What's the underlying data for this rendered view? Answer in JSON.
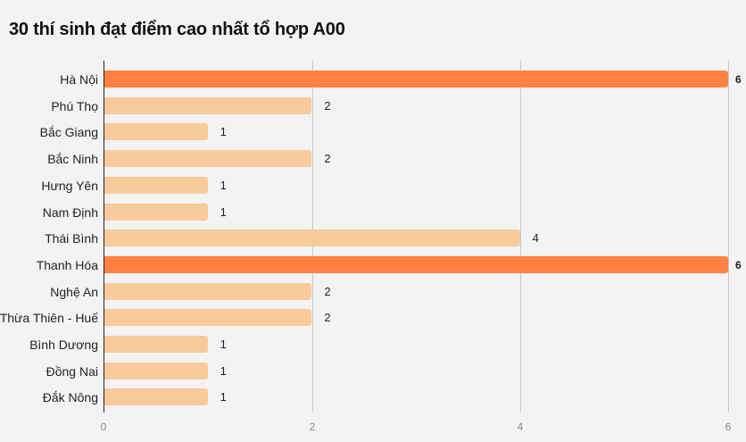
{
  "title": "30 thí sinh đạt điểm cao nhất tổ hợp A00",
  "colors": {
    "highlight": "#ff8040",
    "normal": "#f9ca9b",
    "background": "#f3f3f3"
  },
  "axis": {
    "ticks": [
      "0",
      "2",
      "4",
      "6"
    ]
  },
  "chart_data": {
    "type": "bar",
    "orientation": "horizontal",
    "title": "30 thí sinh đạt điểm cao nhất tổ hợp A00",
    "xlabel": "",
    "ylabel": "",
    "xlim": [
      0,
      6
    ],
    "x_ticks": [
      0,
      2,
      4,
      6
    ],
    "grid": true,
    "categories": [
      "Hà Nội",
      "Phú Thọ",
      "Bắc Giang",
      "Bắc Ninh",
      "Hưng Yên",
      "Nam Định",
      "Thái Bình",
      "Thanh Hóa",
      "Nghệ An",
      "Thừa Thiên - Huế",
      "Bình Dương",
      "Đồng Nai",
      "Đắk Nông"
    ],
    "values": [
      6,
      2,
      1,
      2,
      1,
      1,
      4,
      6,
      2,
      2,
      1,
      1,
      1
    ],
    "highlighted": [
      "Hà Nội",
      "Thanh Hóa"
    ]
  },
  "rows": [
    {
      "label": "Hà Nội",
      "value": "6",
      "v": 6,
      "hi": true
    },
    {
      "label": "Phú Thọ",
      "value": "2",
      "v": 2,
      "hi": false
    },
    {
      "label": "Bắc Giang",
      "value": "1",
      "v": 1,
      "hi": false
    },
    {
      "label": "Bắc Ninh",
      "value": "2",
      "v": 2,
      "hi": false
    },
    {
      "label": "Hưng Yên",
      "value": "1",
      "v": 1,
      "hi": false
    },
    {
      "label": "Nam Định",
      "value": "1",
      "v": 1,
      "hi": false
    },
    {
      "label": "Thái Bình",
      "value": "4",
      "v": 4,
      "hi": false
    },
    {
      "label": "Thanh Hóa",
      "value": "6",
      "v": 6,
      "hi": true
    },
    {
      "label": "Nghệ An",
      "value": "2",
      "v": 2,
      "hi": false
    },
    {
      "label": "Thừa Thiên - Huế",
      "value": "2",
      "v": 2,
      "hi": false
    },
    {
      "label": "Bình Dương",
      "value": "1",
      "v": 1,
      "hi": false
    },
    {
      "label": "Đồng Nai",
      "value": "1",
      "v": 1,
      "hi": false
    },
    {
      "label": "Đắk Nông",
      "value": "1",
      "v": 1,
      "hi": false
    }
  ]
}
